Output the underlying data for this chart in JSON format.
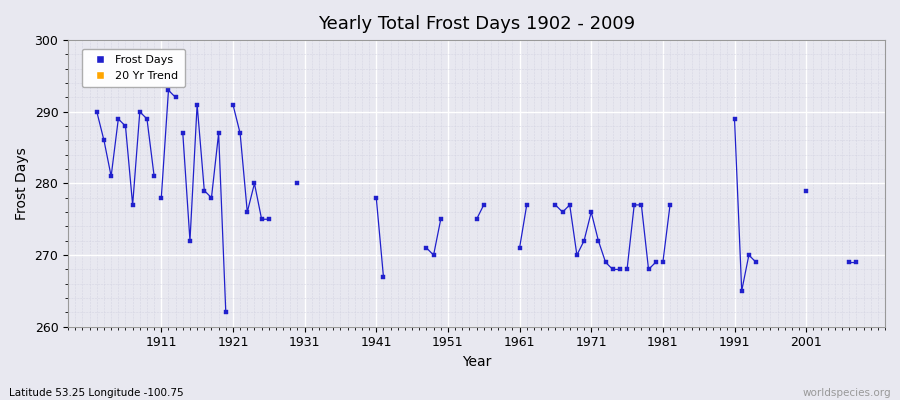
{
  "title": "Yearly Total Frost Days 1902 - 2009",
  "xlabel": "Year",
  "ylabel": "Frost Days",
  "xlim": [
    1898,
    2012
  ],
  "ylim": [
    260,
    300
  ],
  "yticks": [
    260,
    270,
    280,
    290,
    300
  ],
  "xticks": [
    1911,
    1921,
    1931,
    1941,
    1951,
    1961,
    1971,
    1981,
    1991,
    2001
  ],
  "background_color": "#e8e8f0",
  "plot_bg_color": "#e8e8f0",
  "major_grid_color": "#ffffff",
  "minor_grid_color": "#d0d0e0",
  "line_color": "#2020cc",
  "marker_color": "#2020cc",
  "legend_frost_color": "#2020cc",
  "legend_trend_color": "#ffa500",
  "watermark": "worldspecies.org",
  "footer_text": "Latitude 53.25 Longitude -100.75",
  "segments": [
    {
      "years": [
        1902,
        1903,
        1904,
        1905,
        1906,
        1907,
        1908,
        1909,
        1910
      ],
      "frost": [
        290,
        286,
        281,
        289,
        288,
        277,
        290,
        289,
        281
      ]
    },
    {
      "years": [
        1911,
        1912,
        1913
      ],
      "frost": [
        278,
        293,
        292
      ]
    },
    {
      "years": [
        1914,
        1915,
        1916,
        1917,
        1918,
        1919,
        1920
      ],
      "frost": [
        287,
        272,
        291,
        279,
        278,
        287,
        262
      ]
    },
    {
      "years": [
        1921,
        1922,
        1923,
        1924,
        1925,
        1926
      ],
      "frost": [
        291,
        287,
        276,
        280,
        275,
        275
      ]
    },
    {
      "years": [
        1930
      ],
      "frost": [
        280
      ]
    },
    {
      "years": [
        1941,
        1942
      ],
      "frost": [
        278,
        267
      ]
    },
    {
      "years": [
        1948,
        1949,
        1950
      ],
      "frost": [
        271,
        270,
        275
      ]
    },
    {
      "years": [
        1955,
        1956
      ],
      "frost": [
        275,
        277
      ]
    },
    {
      "years": [
        1961,
        1962
      ],
      "frost": [
        271,
        277
      ]
    },
    {
      "years": [
        1966,
        1967,
        1968,
        1969,
        1970,
        1971,
        1972,
        1973,
        1974,
        1975
      ],
      "frost": [
        277,
        276,
        277,
        270,
        272,
        276,
        272,
        269,
        268,
        268
      ]
    },
    {
      "years": [
        1976,
        1977,
        1978,
        1979,
        1980
      ],
      "frost": [
        268,
        277,
        277,
        268,
        269
      ]
    },
    {
      "years": [
        1981,
        1982
      ],
      "frost": [
        269,
        277
      ]
    },
    {
      "years": [
        1991,
        1992,
        1993,
        1994
      ],
      "frost": [
        289,
        265,
        270,
        269
      ]
    },
    {
      "years": [
        2001
      ],
      "frost": [
        279
      ]
    },
    {
      "years": [
        2007,
        2008
      ],
      "frost": [
        269,
        269
      ]
    }
  ]
}
